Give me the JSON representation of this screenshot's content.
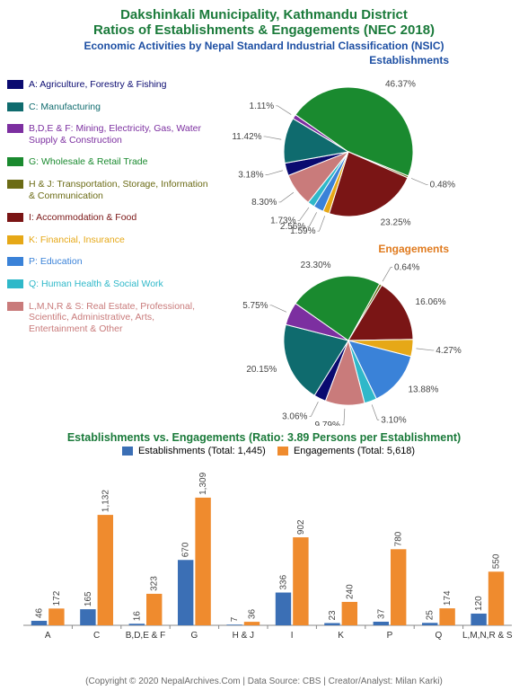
{
  "header": {
    "title1": "Dakshinkali Municipality, Kathmandu District",
    "title2": "Ratios of Establishments & Engagements (NEC 2018)",
    "subtitle": "Economic Activities by Nepal Standard Industrial Classification (NSIC)"
  },
  "colors": {
    "title_green": "#1a7a3a",
    "est_blue": "#1d4fa3",
    "eng_orange": "#e07b1f",
    "bar_est": "#3b6fb5",
    "bar_eng": "#ef8b2e"
  },
  "categories": [
    {
      "code": "A",
      "label": "A: Agriculture, Forestry & Fishing",
      "color": "#0a0a70"
    },
    {
      "code": "C",
      "label": "C: Manufacturing",
      "color": "#0f6b6e"
    },
    {
      "code": "B,D,E & F",
      "label": "B,D,E & F: Mining, Electricity, Gas, Water Supply & Construction",
      "color": "#7c2fa0"
    },
    {
      "code": "G",
      "label": "G: Wholesale & Retail Trade",
      "color": "#1a8a2f"
    },
    {
      "code": "H & J",
      "label": "H & J: Transportation, Storage, Information & Communication",
      "color": "#6b6b15"
    },
    {
      "code": "I",
      "label": "I: Accommodation & Food",
      "color": "#7a1515"
    },
    {
      "code": "K",
      "label": "K: Financial, Insurance",
      "color": "#e6a817"
    },
    {
      "code": "P",
      "label": "P: Education",
      "color": "#3a82d8"
    },
    {
      "code": "Q",
      "label": "Q: Human Health & Social Work",
      "color": "#2fb8c9"
    },
    {
      "code": "L,M,N,R & S",
      "label": "L,M,N,R & S: Real Estate, Professional, Scientific, Administrative, Arts, Entertainment & Other",
      "color": "#c97b7b"
    }
  ],
  "pies": {
    "establishments": {
      "title": "Establishments",
      "slices": [
        {
          "code": "A",
          "pct": 3.18
        },
        {
          "code": "C",
          "pct": 11.42
        },
        {
          "code": "B,D,E & F",
          "pct": 1.11
        },
        {
          "code": "G",
          "pct": 46.37
        },
        {
          "code": "H & J",
          "pct": 0.48
        },
        {
          "code": "I",
          "pct": 23.25
        },
        {
          "code": "K",
          "pct": 1.59
        },
        {
          "code": "P",
          "pct": 2.56
        },
        {
          "code": "Q",
          "pct": 1.73
        },
        {
          "code": "L,M,N,R & S",
          "pct": 8.3
        }
      ]
    },
    "engagements": {
      "title": "Engagements",
      "slices": [
        {
          "code": "A",
          "pct": 3.06
        },
        {
          "code": "C",
          "pct": 20.15
        },
        {
          "code": "B,D,E & F",
          "pct": 5.75
        },
        {
          "code": "G",
          "pct": 23.3
        },
        {
          "code": "H & J",
          "pct": 0.64
        },
        {
          "code": "I",
          "pct": 16.06
        },
        {
          "code": "K",
          "pct": 4.27
        },
        {
          "code": "P",
          "pct": 13.88
        },
        {
          "code": "Q",
          "pct": 3.1
        },
        {
          "code": "L,M,N,R & S",
          "pct": 9.79
        }
      ]
    }
  },
  "bar": {
    "title": "Establishments vs. Engagements (Ratio: 3.89 Persons per Establishment)",
    "legend_est": "Establishments (Total: 1,445)",
    "legend_eng": "Engagements (Total: 5,618)",
    "ymax": 1400,
    "label_fontsize": 10,
    "axis_fontsize": 10,
    "bar_group_width": 0.7,
    "data": [
      {
        "code": "A",
        "est": 46,
        "eng": 172
      },
      {
        "code": "C",
        "est": 165,
        "eng": 1132
      },
      {
        "code": "B,D,E & F",
        "est": 16,
        "eng": 323
      },
      {
        "code": "G",
        "est": 670,
        "eng": 1309
      },
      {
        "code": "H & J",
        "est": 7,
        "eng": 36
      },
      {
        "code": "I",
        "est": 336,
        "eng": 902
      },
      {
        "code": "K",
        "est": 23,
        "eng": 240
      },
      {
        "code": "P",
        "est": 37,
        "eng": 780
      },
      {
        "code": "Q",
        "est": 25,
        "eng": 174
      },
      {
        "code": "L,M,N,R & S",
        "est": 120,
        "eng": 550
      }
    ]
  },
  "copyright": "(Copyright © 2020 NepalArchives.Com | Data Source: CBS | Creator/Analyst: Milan Karki)"
}
